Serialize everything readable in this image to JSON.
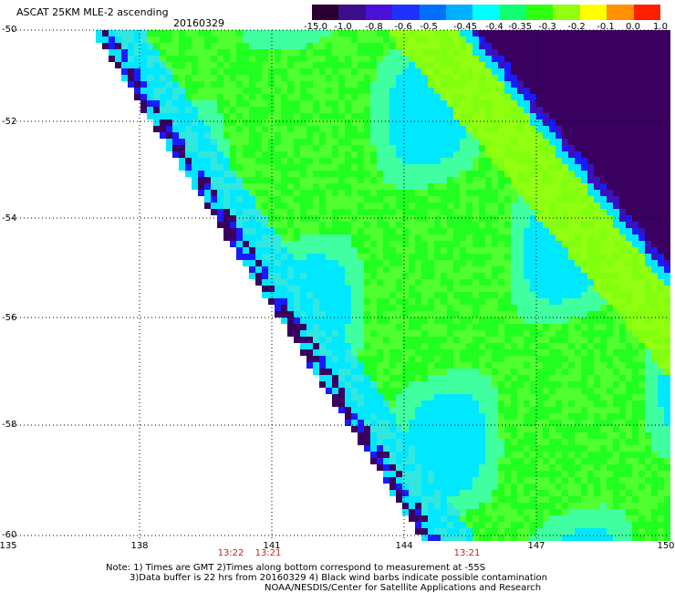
{
  "header": {
    "title": "ASCAT 25KM MLE-2 ascending",
    "date": "20160329"
  },
  "colorbar": {
    "labels": [
      "-15.0",
      "-1.0",
      "-0.8",
      "-0.6",
      "-0.5",
      "-0.45",
      "-0.4",
      "-0.35",
      "-0.3",
      "-0.2",
      "-0.1",
      "0.0",
      "1.0"
    ],
    "colors": [
      "#2a0030",
      "#3c0d8a",
      "#4a10d8",
      "#2030ff",
      "#0070ff",
      "#00b0ff",
      "#00ffff",
      "#10ff70",
      "#30ff10",
      "#90ff10",
      "#ffff00",
      "#ff9000",
      "#ff2000"
    ]
  },
  "axes": {
    "lat_labels": [
      "-50",
      "-52",
      "-54",
      "-56",
      "-58",
      "-60"
    ],
    "lon_labels": [
      "135",
      "138",
      "141",
      "144",
      "147",
      "150"
    ]
  },
  "times": [
    "13:22",
    "13:21",
    "13:21"
  ],
  "notes": {
    "line1": "Note: 1) Times are GMT 2)Times along bottom correspond to measurement at -55S",
    "line2": "3)Data buffer is 22 hrs from 20160329 4) Black wind barbs indicate possible contamination",
    "line3": "NOAA/NESDIS/Center for Satellite Applications and Research"
  },
  "swath_colors": {
    "deep": "#3a0060",
    "blue": "#1a1aff",
    "cyan": "#00e8ff",
    "green": "#20ff20",
    "lime": "#80ff10"
  }
}
